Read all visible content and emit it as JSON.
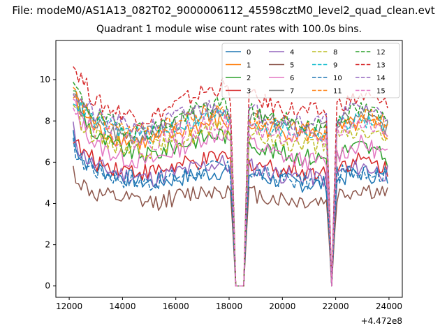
{
  "figure": {
    "suptitle": "File: modeM0/AS1A13_082T02_9000006112_45598cztM0_level2_quad_clean.evt",
    "title": "Quadrant 1 module wise count rates with 100.0s bins."
  },
  "chart_data": {
    "type": "line",
    "title": "Quadrant 1 module wise count rates with 100.0s bins.",
    "xlabel": "",
    "ylabel": "",
    "x_offset_label": "+4.472e8",
    "xlim": [
      11500,
      24500
    ],
    "ylim": [
      -0.55,
      11.9
    ],
    "x_ticks": [
      12000,
      14000,
      16000,
      18000,
      20000,
      22000,
      24000
    ],
    "y_ticks": [
      0,
      2,
      4,
      6,
      8,
      10
    ],
    "x_range": [
      12150,
      24000
    ],
    "bin_size": 100,
    "gaps": [
      {
        "start": 18250,
        "end": 18550,
        "edges": [
          18150,
          18650
        ]
      },
      {
        "start": 21850,
        "end": 21850,
        "edges": [
          21750,
          21950
        ]
      }
    ],
    "series": [
      {
        "name": "0",
        "color": "#1f77b4",
        "dash": "solid",
        "profile": [
          [
            12150,
            7.5
          ],
          [
            12400,
            6.2
          ],
          [
            13000,
            5.7
          ],
          [
            14000,
            5.3
          ],
          [
            15000,
            5.0
          ],
          [
            16000,
            5.2
          ],
          [
            17000,
            5.4
          ],
          [
            17800,
            5.6
          ],
          [
            18050,
            5.3
          ],
          [
            18800,
            5.5
          ],
          [
            19500,
            5.2
          ],
          [
            20500,
            5.0
          ],
          [
            21600,
            4.9
          ],
          [
            22100,
            5.2
          ],
          [
            23000,
            5.5
          ],
          [
            24000,
            5.2
          ]
        ]
      },
      {
        "name": "1",
        "color": "#ff7f0e",
        "dash": "solid",
        "profile": [
          [
            12150,
            9.2
          ],
          [
            12400,
            8.4
          ],
          [
            13000,
            7.6
          ],
          [
            14000,
            7.1
          ],
          [
            15000,
            6.9
          ],
          [
            16000,
            7.4
          ],
          [
            17000,
            7.8
          ],
          [
            17800,
            8.0
          ],
          [
            18050,
            7.7
          ],
          [
            18800,
            7.8
          ],
          [
            19500,
            7.6
          ],
          [
            20500,
            7.4
          ],
          [
            21600,
            7.3
          ],
          [
            22100,
            7.6
          ],
          [
            23000,
            7.9
          ],
          [
            24000,
            7.4
          ]
        ]
      },
      {
        "name": "2",
        "color": "#2ca02c",
        "dash": "solid",
        "profile": [
          [
            12150,
            9.7
          ],
          [
            12400,
            8.6
          ],
          [
            13000,
            7.2
          ],
          [
            14000,
            6.6
          ],
          [
            15000,
            6.3
          ],
          [
            16000,
            6.8
          ],
          [
            17000,
            7.2
          ],
          [
            17800,
            7.4
          ],
          [
            18050,
            7.0
          ],
          [
            18800,
            7.0
          ],
          [
            19500,
            6.6
          ],
          [
            20500,
            6.3
          ],
          [
            21600,
            6.2
          ],
          [
            22100,
            6.5
          ],
          [
            23000,
            6.8
          ],
          [
            24000,
            6.1
          ]
        ]
      },
      {
        "name": "3",
        "color": "#d62728",
        "dash": "solid",
        "profile": [
          [
            12150,
            7.3
          ],
          [
            12400,
            6.6
          ],
          [
            13000,
            6.0
          ],
          [
            14000,
            5.7
          ],
          [
            15000,
            5.5
          ],
          [
            16000,
            5.8
          ],
          [
            17000,
            6.0
          ],
          [
            17800,
            6.3
          ],
          [
            18050,
            6.0
          ],
          [
            18800,
            6.0
          ],
          [
            19500,
            5.8
          ],
          [
            20500,
            5.6
          ],
          [
            21600,
            5.5
          ],
          [
            22100,
            5.9
          ],
          [
            23000,
            6.1
          ],
          [
            24000,
            5.7
          ]
        ]
      },
      {
        "name": "4",
        "color": "#9467bd",
        "dash": "solid",
        "profile": [
          [
            12150,
            7.6
          ],
          [
            12400,
            6.5
          ],
          [
            13000,
            5.8
          ],
          [
            14000,
            5.4
          ],
          [
            15000,
            5.2
          ],
          [
            16000,
            5.5
          ],
          [
            17000,
            5.8
          ],
          [
            17800,
            6.0
          ],
          [
            18050,
            5.7
          ],
          [
            18800,
            5.8
          ],
          [
            19500,
            5.5
          ],
          [
            20500,
            5.3
          ],
          [
            21600,
            5.2
          ],
          [
            22100,
            5.5
          ],
          [
            23000,
            5.8
          ],
          [
            24000,
            5.4
          ]
        ]
      },
      {
        "name": "5",
        "color": "#8c564b",
        "dash": "solid",
        "profile": [
          [
            12150,
            5.6
          ],
          [
            12400,
            5.0
          ],
          [
            13000,
            4.4
          ],
          [
            14000,
            4.2
          ],
          [
            15000,
            4.0
          ],
          [
            16000,
            4.3
          ],
          [
            17000,
            4.6
          ],
          [
            17800,
            4.7
          ],
          [
            18050,
            4.5
          ],
          [
            18800,
            4.5
          ],
          [
            19500,
            4.3
          ],
          [
            20500,
            4.1
          ],
          [
            21600,
            4.1
          ],
          [
            22100,
            4.4
          ],
          [
            23000,
            4.7
          ],
          [
            24000,
            4.4
          ]
        ]
      },
      {
        "name": "6",
        "color": "#e377c2",
        "dash": "solid",
        "profile": [
          [
            12150,
            9.0
          ],
          [
            12400,
            8.0
          ],
          [
            13000,
            6.8
          ],
          [
            14000,
            6.2
          ],
          [
            15000,
            6.0
          ],
          [
            16000,
            6.6
          ],
          [
            17000,
            7.2
          ],
          [
            17800,
            7.4
          ],
          [
            18050,
            7.0
          ],
          [
            18800,
            7.0
          ],
          [
            19500,
            6.5
          ],
          [
            20500,
            6.1
          ],
          [
            21600,
            6.0
          ],
          [
            22100,
            6.4
          ],
          [
            23000,
            6.9
          ],
          [
            24000,
            6.3
          ]
        ]
      },
      {
        "name": "7",
        "color": "#7f7f7f",
        "dash": "solid",
        "profile": [
          [
            12150,
            9.4
          ],
          [
            12400,
            8.7
          ],
          [
            13000,
            7.8
          ],
          [
            14000,
            7.3
          ],
          [
            15000,
            7.3
          ],
          [
            16000,
            7.9
          ],
          [
            17000,
            8.4
          ],
          [
            17800,
            8.6
          ],
          [
            18050,
            8.2
          ],
          [
            18800,
            8.3
          ],
          [
            19500,
            7.9
          ],
          [
            20500,
            7.6
          ],
          [
            21600,
            7.5
          ],
          [
            22100,
            7.9
          ],
          [
            23000,
            8.2
          ],
          [
            24000,
            7.7
          ]
        ]
      },
      {
        "name": "8",
        "color": "#bcbd22",
        "dash": "dashed",
        "profile": [
          [
            12150,
            9.0
          ],
          [
            12400,
            8.1
          ],
          [
            13000,
            7.2
          ],
          [
            14000,
            6.8
          ],
          [
            15000,
            6.6
          ],
          [
            16000,
            7.0
          ],
          [
            17000,
            7.4
          ],
          [
            17800,
            7.6
          ],
          [
            18050,
            7.3
          ],
          [
            18800,
            7.4
          ],
          [
            19500,
            7.1
          ],
          [
            20500,
            6.9
          ],
          [
            21600,
            6.8
          ],
          [
            22100,
            7.2
          ],
          [
            23000,
            7.5
          ],
          [
            24000,
            7.1
          ]
        ]
      },
      {
        "name": "9",
        "color": "#17becf",
        "dash": "dashed",
        "profile": [
          [
            12150,
            9.2
          ],
          [
            12400,
            8.6
          ],
          [
            13000,
            7.9
          ],
          [
            14000,
            7.5
          ],
          [
            15000,
            7.3
          ],
          [
            16000,
            7.8
          ],
          [
            17000,
            8.1
          ],
          [
            17800,
            8.3
          ],
          [
            18050,
            8.0
          ],
          [
            18800,
            8.0
          ],
          [
            19500,
            7.7
          ],
          [
            20500,
            7.5
          ],
          [
            21600,
            7.4
          ],
          [
            22100,
            7.8
          ],
          [
            23000,
            8.1
          ],
          [
            24000,
            7.6
          ]
        ]
      },
      {
        "name": "10",
        "color": "#1f77b4",
        "dash": "dashed",
        "profile": [
          [
            12150,
            6.8
          ],
          [
            12400,
            6.1
          ],
          [
            13000,
            5.6
          ],
          [
            14000,
            5.2
          ],
          [
            15000,
            5.0
          ],
          [
            16000,
            5.3
          ],
          [
            17000,
            5.6
          ],
          [
            17800,
            5.8
          ],
          [
            18050,
            5.5
          ],
          [
            18800,
            5.6
          ],
          [
            19500,
            5.3
          ],
          [
            20500,
            5.1
          ],
          [
            21600,
            5.0
          ],
          [
            22100,
            5.4
          ],
          [
            23000,
            5.7
          ],
          [
            24000,
            5.3
          ]
        ]
      },
      {
        "name": "11",
        "color": "#ff7f0e",
        "dash": "dashed",
        "profile": [
          [
            12150,
            9.4
          ],
          [
            12400,
            8.8
          ],
          [
            13000,
            8.0
          ],
          [
            14000,
            7.6
          ],
          [
            15000,
            7.4
          ],
          [
            16000,
            7.9
          ],
          [
            17000,
            8.3
          ],
          [
            17800,
            8.5
          ],
          [
            18050,
            8.1
          ],
          [
            18800,
            8.2
          ],
          [
            19500,
            7.9
          ],
          [
            20500,
            7.7
          ],
          [
            21600,
            7.6
          ],
          [
            22100,
            8.0
          ],
          [
            23000,
            8.3
          ],
          [
            24000,
            7.8
          ]
        ]
      },
      {
        "name": "12",
        "color": "#2ca02c",
        "dash": "dashed",
        "profile": [
          [
            12150,
            9.8
          ],
          [
            12400,
            9.1
          ],
          [
            13000,
            8.2
          ],
          [
            14000,
            7.7
          ],
          [
            15000,
            7.5
          ],
          [
            16000,
            8.1
          ],
          [
            17000,
            8.6
          ],
          [
            17800,
            8.8
          ],
          [
            18050,
            8.4
          ],
          [
            18800,
            8.5
          ],
          [
            19500,
            8.1
          ],
          [
            20500,
            7.9
          ],
          [
            21600,
            7.8
          ],
          [
            22100,
            8.2
          ],
          [
            23000,
            8.6
          ],
          [
            24000,
            8.0
          ]
        ]
      },
      {
        "name": "13",
        "color": "#d62728",
        "dash": "dashed",
        "profile": [
          [
            12150,
            10.7
          ],
          [
            12400,
            10.2
          ],
          [
            13000,
            8.9
          ],
          [
            14000,
            8.4
          ],
          [
            15000,
            8.1
          ],
          [
            16000,
            8.8
          ],
          [
            17000,
            9.4
          ],
          [
            17800,
            9.7
          ],
          [
            18050,
            9.2
          ],
          [
            18800,
            9.2
          ],
          [
            19500,
            8.8
          ],
          [
            20500,
            8.5
          ],
          [
            21600,
            8.4
          ],
          [
            22100,
            8.8
          ],
          [
            23000,
            9.2
          ],
          [
            24000,
            8.7
          ]
        ]
      },
      {
        "name": "14",
        "color": "#9467bd",
        "dash": "dashed",
        "profile": [
          [
            12150,
            9.5
          ],
          [
            12400,
            9.0
          ],
          [
            13000,
            8.2
          ],
          [
            14000,
            7.8
          ],
          [
            15000,
            7.6
          ],
          [
            16000,
            8.2
          ],
          [
            17000,
            8.6
          ],
          [
            17800,
            8.8
          ],
          [
            18050,
            8.4
          ],
          [
            18800,
            8.5
          ],
          [
            19500,
            8.2
          ],
          [
            20500,
            8.0
          ],
          [
            21600,
            7.9
          ],
          [
            22100,
            8.3
          ],
          [
            23000,
            8.7
          ],
          [
            24000,
            8.2
          ]
        ]
      },
      {
        "name": "15",
        "color": "#e377c2",
        "dash": "dashed",
        "profile": [
          [
            12150,
            9.0
          ],
          [
            12400,
            8.3
          ],
          [
            13000,
            7.5
          ],
          [
            14000,
            7.1
          ],
          [
            15000,
            6.9
          ],
          [
            16000,
            7.4
          ],
          [
            17000,
            7.8
          ],
          [
            17800,
            8.0
          ],
          [
            18050,
            7.7
          ],
          [
            18800,
            7.7
          ],
          [
            19500,
            7.4
          ],
          [
            20500,
            7.2
          ],
          [
            21600,
            7.1
          ],
          [
            22100,
            7.5
          ],
          [
            23000,
            7.9
          ],
          [
            24000,
            7.4
          ]
        ]
      }
    ]
  }
}
